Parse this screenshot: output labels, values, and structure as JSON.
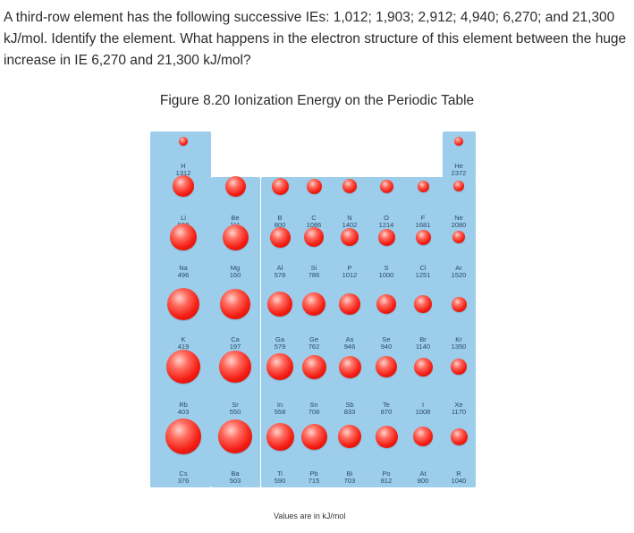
{
  "question": "A third-row element has the following successive IEs: 1,012; 1,903; 2,912; 4,940; 6,270; and 21,300 kJ/mol. Identify the element.  What happens in the electron structure  of this element between the huge increase in IE 6,270 and 21,300 kJ/mol?",
  "figure": {
    "caption": "Figure 8.20 Ionization Energy on the Periodic Table",
    "footnote": "Values are in kJ/mol",
    "ball_color": "#f41e14",
    "panel_color": "#9ccdea"
  },
  "elements": [
    {
      "symbol": "H",
      "ie": "1312",
      "row": 0,
      "col": 0
    },
    {
      "symbol": "He",
      "ie": "2372",
      "row": 0,
      "col": 7
    },
    {
      "symbol": "Li",
      "ie": "520",
      "row": 1,
      "col": 0
    },
    {
      "symbol": "Be",
      "ie": "111",
      "row": 1,
      "col": 1
    },
    {
      "symbol": "B",
      "ie": "800",
      "row": 1,
      "col": 2
    },
    {
      "symbol": "C",
      "ie": "1086",
      "row": 1,
      "col": 3
    },
    {
      "symbol": "N",
      "ie": "1402",
      "row": 1,
      "col": 4
    },
    {
      "symbol": "O",
      "ie": "1214",
      "row": 1,
      "col": 5
    },
    {
      "symbol": "F",
      "ie": "1681",
      "row": 1,
      "col": 6
    },
    {
      "symbol": "Ne",
      "ie": "2080",
      "row": 1,
      "col": 7
    },
    {
      "symbol": "Na",
      "ie": "496",
      "row": 2,
      "col": 0
    },
    {
      "symbol": "Mg",
      "ie": "160",
      "row": 2,
      "col": 1
    },
    {
      "symbol": "Al",
      "ie": "578",
      "row": 2,
      "col": 2
    },
    {
      "symbol": "Si",
      "ie": "786",
      "row": 2,
      "col": 3
    },
    {
      "symbol": "P",
      "ie": "1012",
      "row": 2,
      "col": 4
    },
    {
      "symbol": "S",
      "ie": "1000",
      "row": 2,
      "col": 5
    },
    {
      "symbol": "Cl",
      "ie": "1251",
      "row": 2,
      "col": 6
    },
    {
      "symbol": "Ar",
      "ie": "1520",
      "row": 2,
      "col": 7
    },
    {
      "symbol": "K",
      "ie": "419",
      "row": 3,
      "col": 0
    },
    {
      "symbol": "Ca",
      "ie": "197",
      "row": 3,
      "col": 1
    },
    {
      "symbol": "Ga",
      "ie": "579",
      "row": 3,
      "col": 2
    },
    {
      "symbol": "Ge",
      "ie": "762",
      "row": 3,
      "col": 3
    },
    {
      "symbol": "As",
      "ie": "946",
      "row": 3,
      "col": 4
    },
    {
      "symbol": "Se",
      "ie": "940",
      "row": 3,
      "col": 5
    },
    {
      "symbol": "Br",
      "ie": "1140",
      "row": 3,
      "col": 6
    },
    {
      "symbol": "Kr",
      "ie": "1350",
      "row": 3,
      "col": 7
    },
    {
      "symbol": "Rb",
      "ie": "403",
      "row": 4,
      "col": 0
    },
    {
      "symbol": "Sr",
      "ie": "550",
      "row": 4,
      "col": 1
    },
    {
      "symbol": "In",
      "ie": "558",
      "row": 4,
      "col": 2
    },
    {
      "symbol": "Sn",
      "ie": "708",
      "row": 4,
      "col": 3
    },
    {
      "symbol": "Sb",
      "ie": "833",
      "row": 4,
      "col": 4
    },
    {
      "symbol": "Te",
      "ie": "870",
      "row": 4,
      "col": 5
    },
    {
      "symbol": "I",
      "ie": "1008",
      "row": 4,
      "col": 6
    },
    {
      "symbol": "Xe",
      "ie": "1170",
      "row": 4,
      "col": 7
    },
    {
      "symbol": "Cs",
      "ie": "376",
      "row": 5,
      "col": 0
    },
    {
      "symbol": "Ba",
      "ie": "503",
      "row": 5,
      "col": 1
    },
    {
      "symbol": "Ti",
      "ie": "590",
      "row": 5,
      "col": 2
    },
    {
      "symbol": "Pb",
      "ie": "715",
      "row": 5,
      "col": 3
    },
    {
      "symbol": "Bi",
      "ie": "703",
      "row": 5,
      "col": 4
    },
    {
      "symbol": "Po",
      "ie": "812",
      "row": 5,
      "col": 5
    },
    {
      "symbol": "At",
      "ie": "800",
      "row": 5,
      "col": 6
    },
    {
      "symbol": "R",
      "ie": "1040",
      "row": 5,
      "col": 7
    }
  ]
}
